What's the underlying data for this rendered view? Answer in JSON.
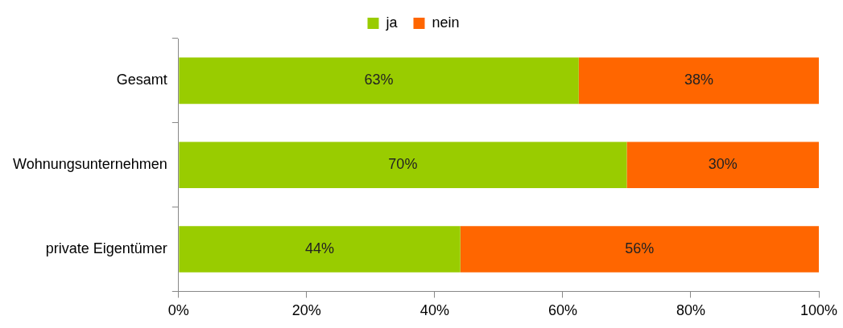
{
  "chart_data": {
    "type": "bar",
    "orientation": "horizontal",
    "stacked": true,
    "categories": [
      "Gesamt",
      "Wohnungsunternehmen",
      "private Eigentümer"
    ],
    "series": [
      {
        "name": "ja",
        "color": "#99cc00",
        "values": [
          62.5,
          70,
          44
        ],
        "value_labels": [
          "63%",
          "70%",
          "44%"
        ]
      },
      {
        "name": "nein",
        "color": "#ff6600",
        "values": [
          37.5,
          30,
          56
        ],
        "value_labels": [
          "38%",
          "30%",
          "56%"
        ]
      }
    ],
    "xlim": [
      0,
      100
    ],
    "xticks": [
      {
        "value": 0,
        "label": "0%"
      },
      {
        "value": 20,
        "label": "20%"
      },
      {
        "value": 40,
        "label": "40%"
      },
      {
        "value": 60,
        "label": "60%"
      },
      {
        "value": 80,
        "label": "80%"
      },
      {
        "value": 100,
        "label": "100%"
      }
    ],
    "legend": "top"
  }
}
